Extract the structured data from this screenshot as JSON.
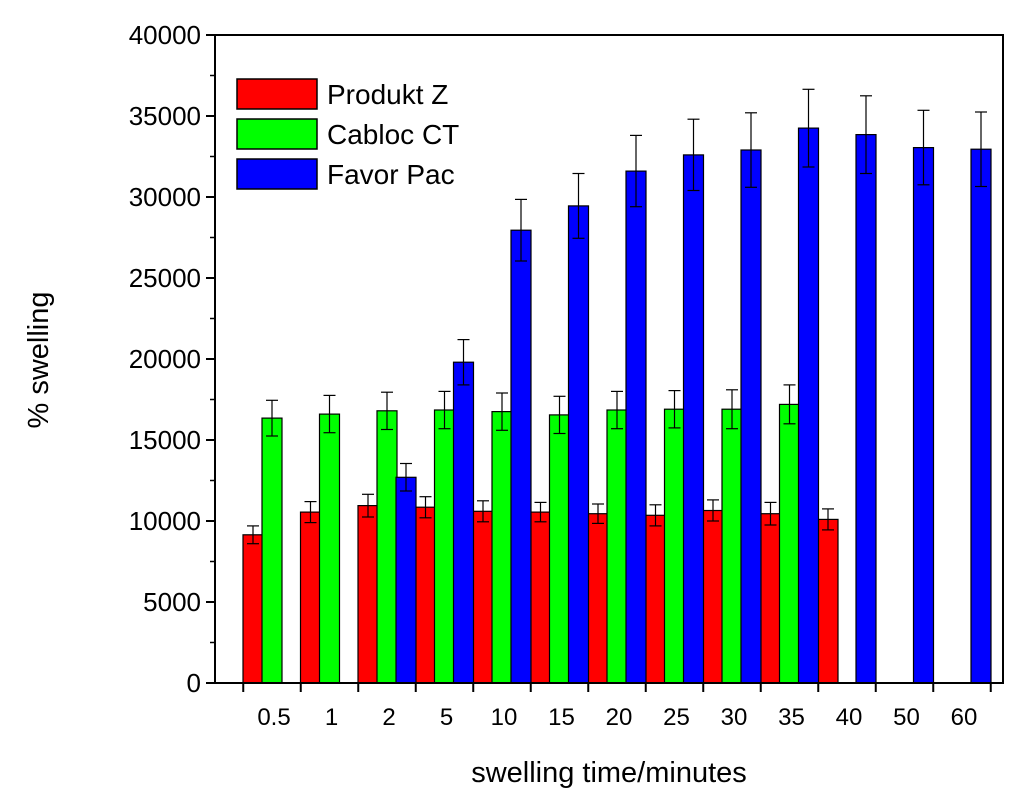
{
  "chart_data": {
    "type": "bar",
    "title": "",
    "xlabel": "swelling time/minutes",
    "ylabel": "% swelling",
    "ylim": [
      0,
      40000
    ],
    "yticks": [
      0,
      5000,
      10000,
      15000,
      20000,
      25000,
      30000,
      35000,
      40000
    ],
    "ytick_labels": [
      "0",
      "5000",
      "10000",
      "15000",
      "20000",
      "25000",
      "30000",
      "35000",
      "40000"
    ],
    "categories": [
      "0.5",
      "1",
      "2",
      "5",
      "10",
      "15",
      "20",
      "25",
      "30",
      "35",
      "40",
      "50",
      "60"
    ],
    "legend_position": "top-left",
    "grid": false,
    "series": [
      {
        "name": "Produkt Z",
        "color": "#ff0000",
        "values": [
          9150,
          10550,
          10950,
          10850,
          10600,
          10550,
          10450,
          10350,
          10650,
          10450,
          10100,
          null,
          null
        ],
        "errors": [
          550,
          650,
          700,
          650,
          650,
          600,
          600,
          650,
          650,
          700,
          650,
          null,
          null
        ]
      },
      {
        "name": "Cabloc CT",
        "color": "#00ff00",
        "values": [
          16350,
          16600,
          16800,
          16850,
          16750,
          16550,
          16850,
          16900,
          16900,
          17200,
          null,
          null,
          null
        ],
        "errors": [
          1100,
          1150,
          1150,
          1150,
          1150,
          1150,
          1150,
          1150,
          1200,
          1200,
          null,
          null,
          null
        ]
      },
      {
        "name": "Favor Pac",
        "color": "#0000ff",
        "values": [
          null,
          null,
          12700,
          19800,
          27950,
          29450,
          31600,
          32600,
          32900,
          34250,
          33850,
          33050,
          32950
        ],
        "errors": [
          null,
          null,
          850,
          1400,
          1900,
          2000,
          2200,
          2200,
          2300,
          2400,
          2400,
          2300,
          2300
        ]
      }
    ]
  }
}
